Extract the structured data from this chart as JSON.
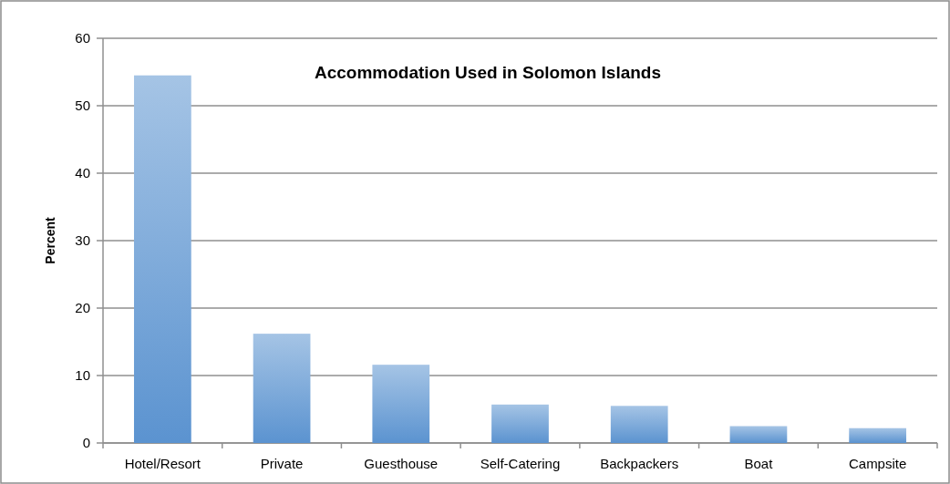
{
  "chart_data": {
    "type": "bar",
    "title": "Accommodation Used in Solomon Islands",
    "ylabel": "Percent",
    "categories": [
      "Hotel/Resort",
      "Private",
      "Guesthouse",
      "Self-Catering",
      "Backpackers",
      "Boat",
      "Campsite"
    ],
    "values": [
      54.5,
      16.2,
      11.6,
      5.7,
      5.5,
      2.5,
      2.2
    ],
    "color": "#5b93d0",
    "ylim": [
      0,
      60
    ],
    "yticks": [
      0,
      10,
      20,
      30,
      40,
      50,
      60
    ],
    "grid": "y"
  }
}
